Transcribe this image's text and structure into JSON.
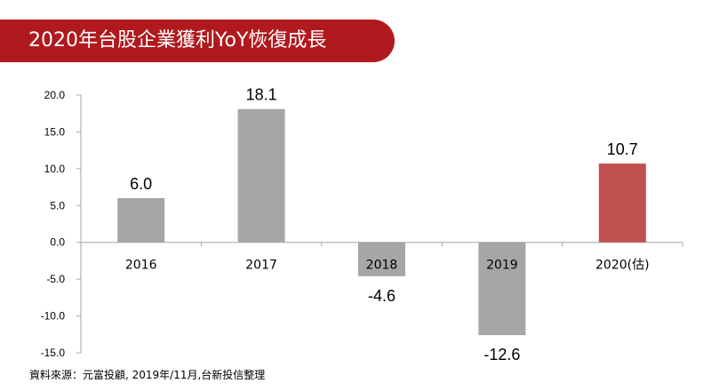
{
  "title": "2020年台股企業獲利YoY恢復成長",
  "source": "資料來源：元富投顧, 2019年/11月,台新投信整理",
  "colors": {
    "banner": "#b0191e",
    "bar_default": "#a6a6a6",
    "bar_highlight": "#c0504d",
    "axis": "#a6a6a6"
  },
  "chart_data": {
    "type": "bar",
    "categories": [
      "2016",
      "2017",
      "2018",
      "2019",
      "2020(估)"
    ],
    "values": [
      6.0,
      18.1,
      -4.6,
      -12.6,
      10.7
    ],
    "data_labels": [
      "6.0",
      "18.1",
      "-4.6",
      "-12.6",
      "10.7"
    ],
    "highlight_index": 4,
    "ylim": [
      -15,
      20
    ],
    "yticks": [
      20,
      15,
      10,
      5,
      0,
      -5,
      -10,
      -15
    ],
    "ytick_labels": [
      "20.0",
      "15.0",
      "10.0",
      "5.0",
      "0.0",
      "-5.0",
      "-10.0",
      "-15.0"
    ],
    "grid": false,
    "xlabel": "",
    "ylabel": ""
  }
}
